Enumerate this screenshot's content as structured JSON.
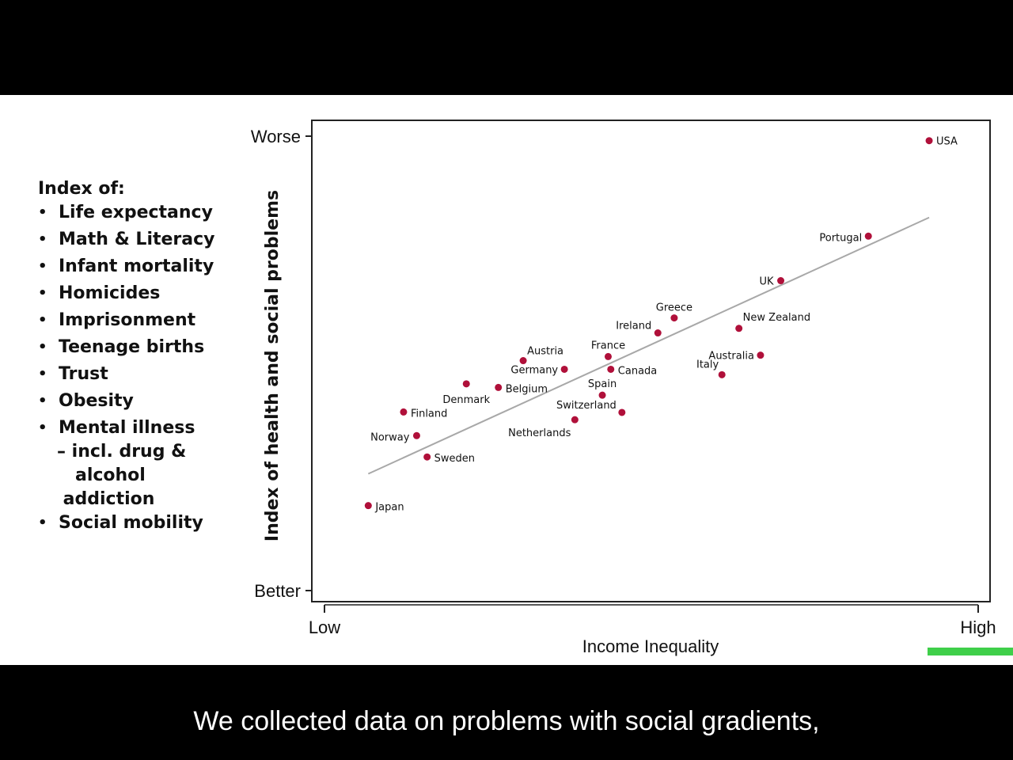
{
  "index_panel": {
    "title": "Index of:",
    "items": [
      "Life expectancy",
      "Math & Literacy",
      "Infant mortality",
      "Homicides",
      "Imprisonment",
      "Teenage births",
      "Trust",
      "Obesity",
      "Mental illness",
      "Social mobility"
    ],
    "mental_illness_sub": "– incl. drug &\n   alcohol\n addiction"
  },
  "chart_data": {
    "type": "scatter",
    "xlabel": "Income Inequality",
    "ylabel": "Index of health and social problems",
    "x_ticks": [
      {
        "label": "Low",
        "value": 0
      },
      {
        "label": "High",
        "value": 1
      }
    ],
    "y_ticks": [
      {
        "label": "Worse",
        "value": 1
      },
      {
        "label": "Better",
        "value": 0
      }
    ],
    "xlim": [
      0,
      1
    ],
    "ylim": [
      0,
      1
    ],
    "point_color": "#b0103a",
    "trendline": {
      "x": [
        0.067,
        0.925
      ],
      "y": [
        0.257,
        0.821
      ],
      "color": "#a8a8a8"
    },
    "points": [
      {
        "name": "USA",
        "x": 0.925,
        "y": 0.99
      },
      {
        "name": "Portugal",
        "x": 0.832,
        "y": 0.78
      },
      {
        "name": "UK",
        "x": 0.698,
        "y": 0.682
      },
      {
        "name": "Greece",
        "x": 0.535,
        "y": 0.6
      },
      {
        "name": "New Zealand",
        "x": 0.634,
        "y": 0.577
      },
      {
        "name": "Ireland",
        "x": 0.51,
        "y": 0.567
      },
      {
        "name": "France",
        "x": 0.434,
        "y": 0.515
      },
      {
        "name": "Australia",
        "x": 0.667,
        "y": 0.518
      },
      {
        "name": "Austria",
        "x": 0.304,
        "y": 0.506
      },
      {
        "name": "Germany",
        "x": 0.367,
        "y": 0.487
      },
      {
        "name": "Canada",
        "x": 0.438,
        "y": 0.487
      },
      {
        "name": "Italy",
        "x": 0.608,
        "y": 0.475
      },
      {
        "name": "Denmark",
        "x": 0.217,
        "y": 0.455
      },
      {
        "name": "Belgium",
        "x": 0.266,
        "y": 0.447
      },
      {
        "name": "Spain",
        "x": 0.425,
        "y": 0.43
      },
      {
        "name": "Switzerland",
        "x": 0.455,
        "y": 0.392
      },
      {
        "name": "Netherlands",
        "x": 0.383,
        "y": 0.376
      },
      {
        "name": "Finland",
        "x": 0.121,
        "y": 0.393
      },
      {
        "name": "Norway",
        "x": 0.141,
        "y": 0.341
      },
      {
        "name": "Sweden",
        "x": 0.157,
        "y": 0.294
      },
      {
        "name": "Japan",
        "x": 0.067,
        "y": 0.187
      }
    ]
  },
  "caption": "We collected data on problems with social gradients,",
  "green_bar_color": "#3fcf4a"
}
